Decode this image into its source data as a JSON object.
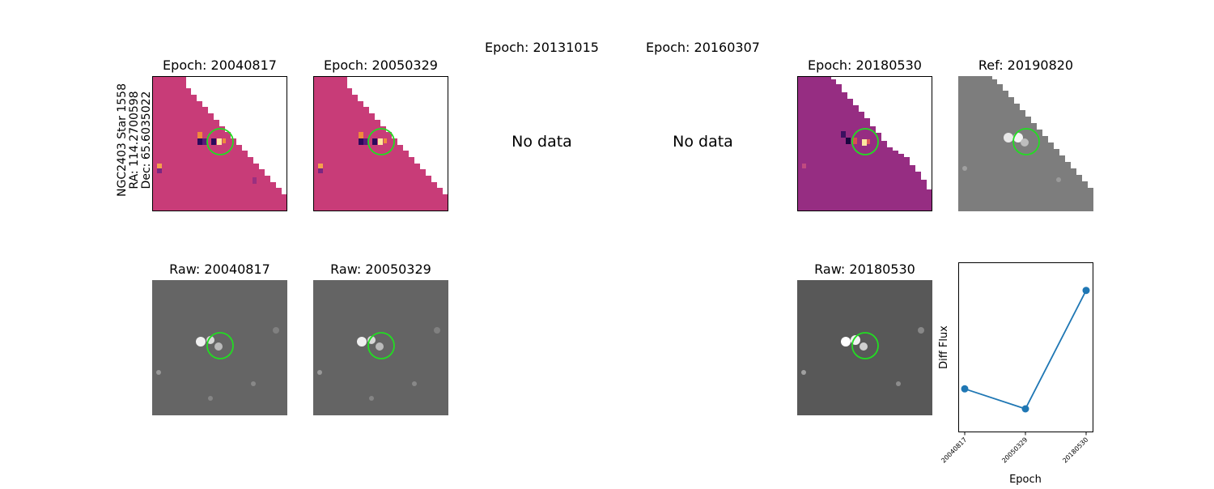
{
  "target": {
    "lines": [
      "NGC2403 Star 1558",
      "RA: 114.2700598",
      "Dec: 65.6035022"
    ]
  },
  "top_titles": [
    "Epoch: 20040817",
    "Epoch: 20050329",
    "Epoch: 20131015",
    "Epoch: 20160307",
    "Epoch: 20180530",
    "Ref: 20190820"
  ],
  "no_data_label": "No data",
  "bottom_titles": [
    "Raw: 20040817",
    "Raw: 20050329",
    "Raw: 20180530"
  ],
  "colors": {
    "diff_bg": "#c83c78",
    "diff_bg_late": "#962d82",
    "raw_bg": "#656565",
    "ref_bg": "#7d7d7d",
    "aperture": "#22dd22",
    "line": "#1f77b4"
  },
  "chart_data": {
    "type": "line",
    "xlabel": "Epoch",
    "ylabel": "Diff Flux",
    "categories": [
      "20040817",
      "20050329",
      "20180530"
    ],
    "series": [
      {
        "values": [
          0.18,
          0.05,
          0.82
        ]
      }
    ],
    "ylim": [
      -0.1,
      1.0
    ],
    "yticks_shown": false,
    "grid": false,
    "marker": "circle"
  }
}
